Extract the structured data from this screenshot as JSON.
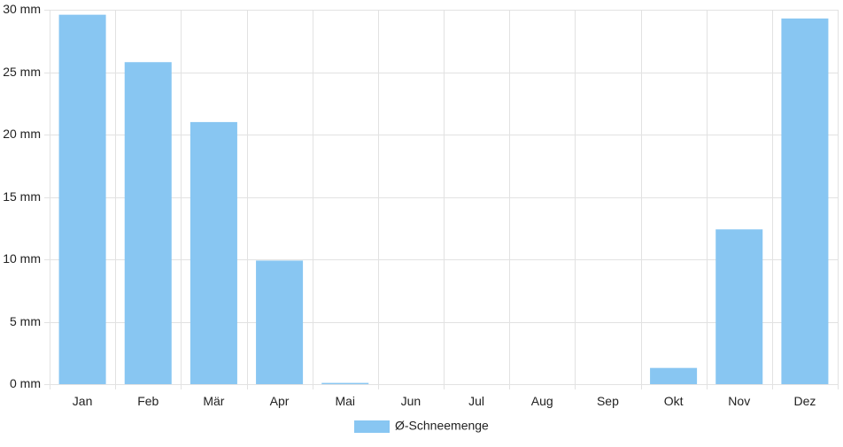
{
  "chart_data": {
    "type": "bar",
    "title": "",
    "xlabel": "",
    "ylabel": "",
    "categories": [
      "Jan",
      "Feb",
      "Mär",
      "Apr",
      "Mai",
      "Jun",
      "Jul",
      "Aug",
      "Sep",
      "Okt",
      "Nov",
      "Dez"
    ],
    "series": [
      {
        "name": "Ø-Schneemenge",
        "color": "#88c6f2",
        "values": [
          29.6,
          25.8,
          21.0,
          9.9,
          0.1,
          0,
          0,
          0,
          0,
          1.3,
          12.4,
          29.3
        ]
      }
    ],
    "ylim": [
      0,
      30
    ],
    "yticks": [
      0,
      5,
      10,
      15,
      20,
      25,
      30
    ],
    "y_unit": "mm",
    "ytick_labels": [
      "0 mm",
      "5 mm",
      "10 mm",
      "15 mm",
      "20 mm",
      "25 mm",
      "30 mm"
    ],
    "grid": true,
    "grid_color": "#e2e2e2",
    "legend": "bottom"
  }
}
